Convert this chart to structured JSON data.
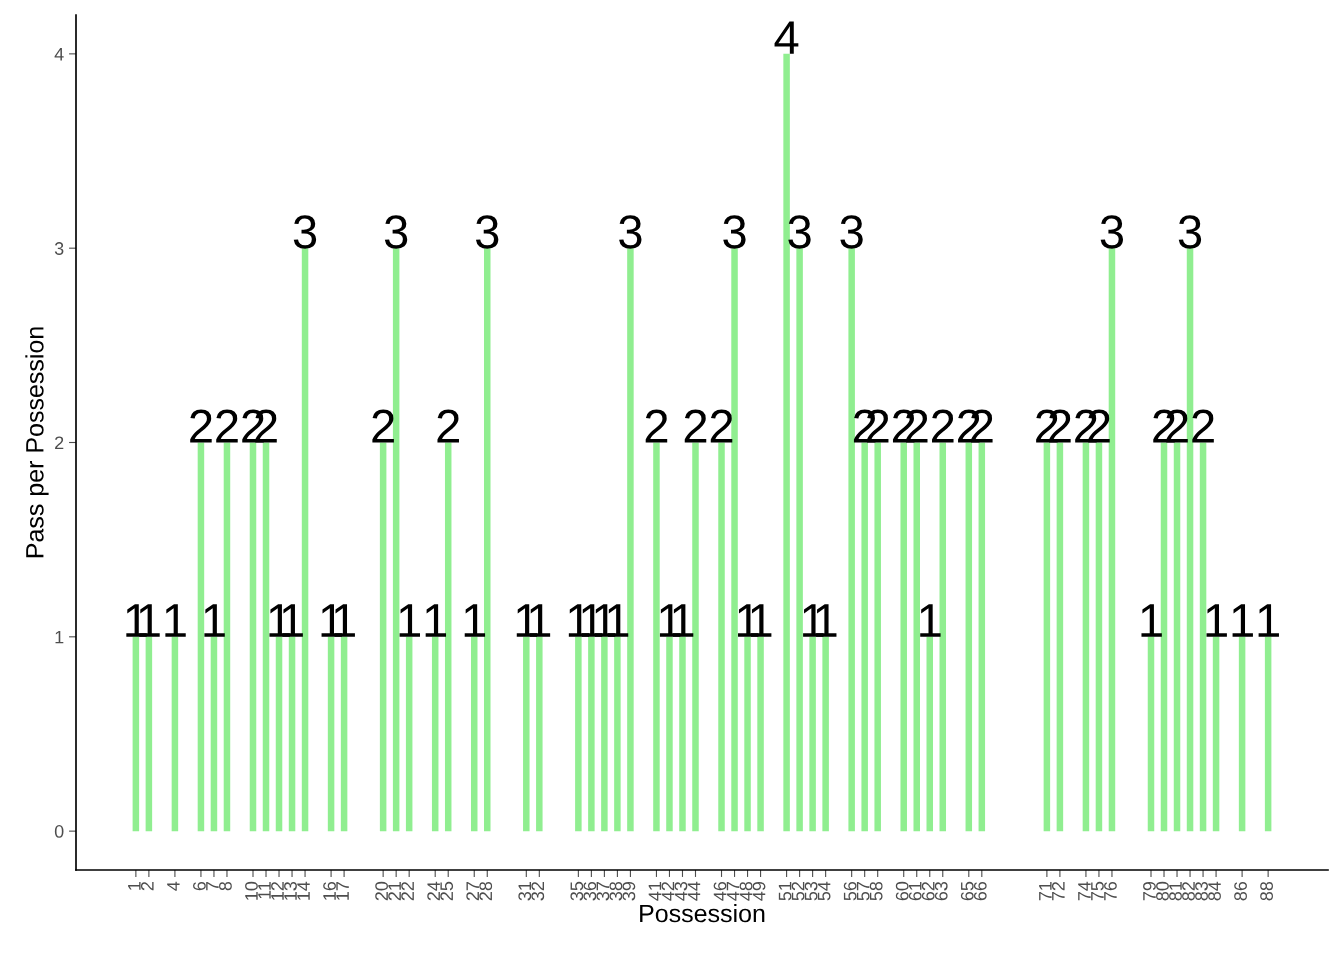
{
  "chart_data": {
    "type": "bar",
    "xlabel": "Possession",
    "ylabel": "Pass per Possession",
    "x": [
      1,
      2,
      4,
      6,
      7,
      8,
      10,
      11,
      12,
      13,
      14,
      16,
      17,
      20,
      21,
      22,
      24,
      25,
      27,
      28,
      31,
      32,
      35,
      36,
      37,
      38,
      39,
      41,
      42,
      43,
      44,
      46,
      47,
      48,
      49,
      51,
      52,
      53,
      54,
      56,
      57,
      58,
      60,
      61,
      62,
      63,
      65,
      66,
      71,
      72,
      74,
      75,
      76,
      79,
      80,
      81,
      82,
      83,
      84,
      86,
      88
    ],
    "values": [
      1,
      1,
      1,
      2,
      1,
      2,
      2,
      2,
      1,
      1,
      3,
      1,
      1,
      2,
      3,
      1,
      1,
      2,
      1,
      3,
      1,
      1,
      1,
      1,
      1,
      1,
      3,
      2,
      1,
      1,
      2,
      2,
      3,
      1,
      1,
      4,
      3,
      1,
      1,
      3,
      2,
      2,
      2,
      2,
      1,
      2,
      2,
      2,
      2,
      2,
      2,
      2,
      3,
      1,
      2,
      2,
      3,
      2,
      1,
      1,
      1
    ],
    "color": "#90ee90",
    "data_labels": true,
    "xlim": [
      -3.6,
      92.6
    ],
    "xticks": [
      1,
      2,
      4,
      6,
      7,
      8,
      10,
      11,
      12,
      13,
      14,
      16,
      17,
      20,
      21,
      22,
      24,
      25,
      27,
      28,
      31,
      32,
      35,
      36,
      37,
      38,
      39,
      41,
      42,
      43,
      44,
      46,
      47,
      48,
      49,
      51,
      52,
      53,
      54,
      56,
      57,
      58,
      60,
      61,
      62,
      63,
      65,
      66,
      71,
      72,
      74,
      75,
      76,
      79,
      80,
      81,
      82,
      83,
      84,
      86,
      88
    ],
    "ylim": [
      -0.2,
      4.2
    ],
    "yticks": [
      0,
      1,
      2,
      3,
      4
    ],
    "grid": false,
    "legend": false
  }
}
